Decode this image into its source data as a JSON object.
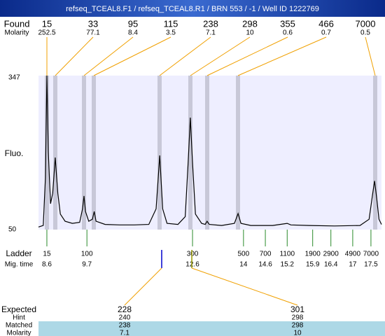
{
  "header": {
    "title": "refseq_TCEAL8.F1 / refseq_TCEAL8.R1 / BRN 553 / -1 / Well ID 1222769"
  },
  "found": {
    "label": "Found",
    "molarity_label": "Molarity",
    "sizes": [
      15,
      33,
      95,
      115,
      238,
      298,
      355,
      466,
      7000
    ],
    "molarity": [
      252.5,
      77.1,
      8.4,
      3.5,
      7.1,
      10,
      0.6,
      0.7,
      0.5
    ]
  },
  "chart_data": {
    "type": "line",
    "y_label": "Fluo.",
    "color": "#000000",
    "x": [
      8.37,
      8.5,
      8.56,
      8.6,
      8.64,
      8.7,
      8.76,
      8.83,
      8.9,
      8.97,
      9.1,
      9.3,
      9.5,
      9.58,
      9.62,
      9.66,
      9.75,
      9.85,
      9.9,
      9.95,
      10.2,
      10.6,
      11.0,
      11.4,
      11.6,
      11.7,
      11.78,
      11.9,
      12.2,
      12.4,
      12.48,
      12.54,
      12.6,
      12.68,
      12.85,
      12.95,
      13.0,
      13.06,
      13.4,
      13.75,
      13.85,
      13.93,
      14.2,
      14.8,
      15.0,
      15.2,
      15.3,
      15.8,
      16.5,
      17.2,
      17.45,
      17.55,
      17.6,
      17.66,
      17.72,
      17.79
    ],
    "values": [
      55,
      58,
      150,
      347,
      200,
      100,
      120,
      189,
      120,
      80,
      66,
      62,
      64,
      90,
      115,
      85,
      66,
      70,
      85,
      66,
      60,
      59,
      59,
      60,
      90,
      193,
      90,
      62,
      60,
      75,
      180,
      266,
      180,
      80,
      62,
      60,
      66,
      60,
      58,
      62,
      81,
      62,
      58,
      58,
      60,
      62,
      59,
      58,
      57,
      58,
      70,
      120,
      144,
      110,
      70,
      60
    ],
    "xlim": [
      8.37,
      17.79
    ],
    "ylim": [
      50,
      347
    ],
    "yticks": [
      50,
      347
    ]
  },
  "ladder": {
    "label": "Ladder",
    "time_label": "Mig. time",
    "sizes": [
      15,
      100,
      300,
      500,
      700,
      1100,
      1900,
      2900,
      4900,
      7000
    ],
    "times": [
      8.6,
      9.7,
      12.6,
      14,
      14.6,
      15.2,
      15.9,
      16.4,
      17,
      17.5
    ]
  },
  "expected": {
    "labels": [
      "Expected",
      "Hint",
      "Matched",
      "Molarity"
    ],
    "columns": [
      {
        "expected": 228,
        "hint": 240,
        "matched": 238,
        "molarity": 7.1
      },
      {
        "expected": 301,
        "hint": 298,
        "matched": 298,
        "molarity": 10
      }
    ]
  }
}
